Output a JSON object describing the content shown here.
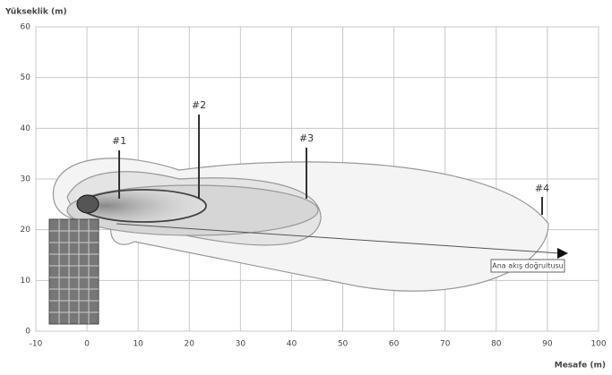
{
  "chart_data": {
    "type": "contour",
    "ylabel": "Yükseklik (m)",
    "xlabel": "Mesafe (m)",
    "xlim": [
      -10,
      100
    ],
    "ylim": [
      0,
      60
    ],
    "xticks": [
      -10,
      0,
      10,
      20,
      30,
      40,
      50,
      60,
      70,
      80,
      90,
      100
    ],
    "yticks": [
      0,
      10,
      20,
      30,
      40,
      50,
      60
    ],
    "grid": true,
    "annotations": [
      "#1",
      "#2",
      "#3",
      "#4"
    ],
    "arrow_label": "Ana akış doğrultusu"
  }
}
